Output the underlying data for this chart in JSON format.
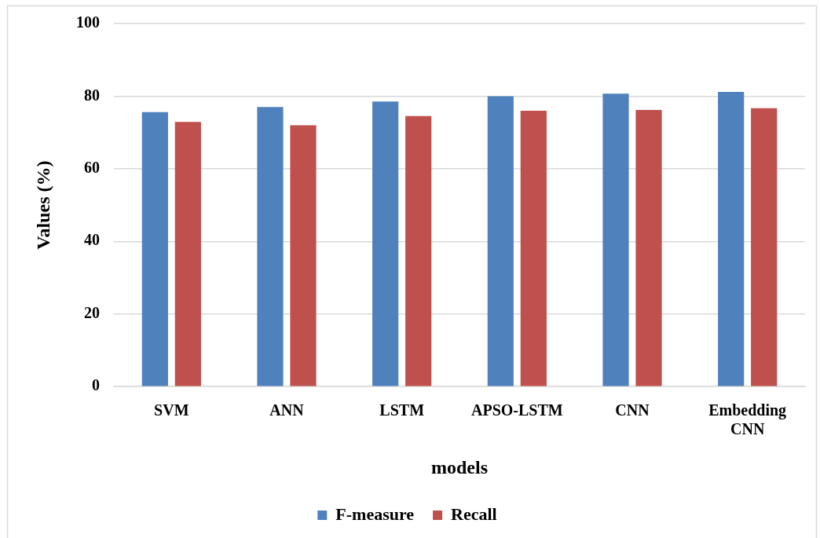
{
  "chart_data": {
    "type": "bar",
    "xlabel": "models",
    "ylabel": "Values (%)",
    "categories": [
      "SVM",
      "ANN",
      "LSTM",
      "APSO-LSTM",
      "CNN",
      "Embedding CNN"
    ],
    "series": [
      {
        "name": "F-measure",
        "color": "#4f81bd",
        "values": [
          75.6,
          77.0,
          78.5,
          80.0,
          80.7,
          81.2
        ]
      },
      {
        "name": "Recall",
        "color": "#c0504d",
        "values": [
          72.9,
          72.0,
          74.5,
          76.0,
          76.2,
          76.7
        ]
      }
    ],
    "ylim": [
      0,
      100
    ],
    "yticks": [
      0,
      20,
      40,
      60,
      80,
      100
    ],
    "grid": "y",
    "legend": "bottom"
  }
}
